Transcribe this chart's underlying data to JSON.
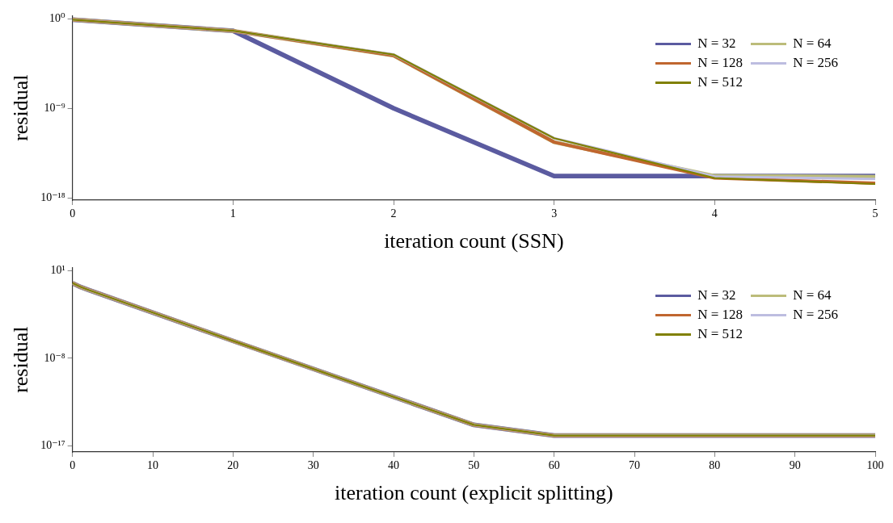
{
  "chart_data": [
    {
      "type": "line",
      "xlabel": "iteration count (SSN)",
      "ylabel": "residual",
      "x": [
        0,
        1,
        2,
        3,
        4,
        5
      ],
      "xlim": [
        0,
        5
      ],
      "xticks": [
        0,
        1,
        2,
        3,
        4,
        5
      ],
      "ylim": [
        6e-19,
        2
      ],
      "yticks": [
        {
          "value": 1,
          "label": "10⁰"
        },
        {
          "value": 1e-09,
          "label": "10⁻⁹"
        },
        {
          "value": 1e-18,
          "label": "10⁻¹⁸"
        }
      ],
      "log": "y",
      "grid": false,
      "legend": "top right",
      "line_style": "solid",
      "marker": "none",
      "series": [
        {
          "name": "N = 32",
          "color": "#5b5ba0",
          "values": [
            0.8,
            0.06,
            1e-09,
            1.6e-16,
            1.6e-16,
            1.6e-16
          ]
        },
        {
          "name": "N = 64",
          "color": "#bcbc7a",
          "values": [
            0.8,
            0.06,
            0.0002,
            4e-13,
            1.6e-16,
            1.3e-16
          ]
        },
        {
          "name": "N = 128",
          "color": "#c0662f",
          "values": [
            0.8,
            0.06,
            0.0002,
            4e-13,
            1e-16,
            3e-17
          ]
        },
        {
          "name": "N = 256",
          "color": "#bdbde0",
          "values": [
            0.8,
            0.06,
            0.00025,
            1e-12,
            1.4e-16,
            8e-17
          ]
        },
        {
          "name": "N = 512",
          "color": "#808000",
          "values": [
            0.8,
            0.06,
            0.00025,
            1e-12,
            1e-16,
            2.5e-17
          ]
        }
      ]
    },
    {
      "type": "line",
      "xlabel": "iteration count (explicit splitting)",
      "ylabel": "residual",
      "x": [
        0,
        1,
        2,
        20,
        50,
        60,
        100
      ],
      "xlim": [
        0,
        100
      ],
      "xticks": [
        0,
        10,
        20,
        30,
        40,
        50,
        60,
        70,
        80,
        90,
        100
      ],
      "ylim": [
        2.5e-18,
        20
      ],
      "yticks": [
        {
          "value": 10,
          "label": "10¹"
        },
        {
          "value": 1e-08,
          "label": "10⁻⁸"
        },
        {
          "value": 1e-17,
          "label": "10⁻¹⁷"
        }
      ],
      "log": "y",
      "grid": false,
      "legend": "top right",
      "line_style": "solid",
      "marker": "none",
      "series": [
        {
          "name": "N = 32",
          "color": "#5b5ba0",
          "values": [
            0.5,
            0.2,
            0.1,
            6e-07,
            1.5e-15,
            1.2e-16,
            1.2e-16
          ]
        },
        {
          "name": "N = 64",
          "color": "#bcbc7a",
          "values": [
            0.5,
            0.2,
            0.1,
            6e-07,
            1.5e-15,
            1.2e-16,
            1.2e-16
          ]
        },
        {
          "name": "N = 128",
          "color": "#c0662f",
          "values": [
            0.5,
            0.2,
            0.1,
            6e-07,
            1.5e-15,
            1.2e-16,
            1.2e-16
          ]
        },
        {
          "name": "N = 256",
          "color": "#bdbde0",
          "values": [
            0.5,
            0.2,
            0.1,
            6e-07,
            1.5e-15,
            1.2e-16,
            1.2e-16
          ]
        },
        {
          "name": "N = 512",
          "color": "#808000",
          "values": [
            0.5,
            0.2,
            0.1,
            6e-07,
            1.5e-15,
            1.2e-16,
            1.2e-16
          ]
        }
      ]
    }
  ]
}
